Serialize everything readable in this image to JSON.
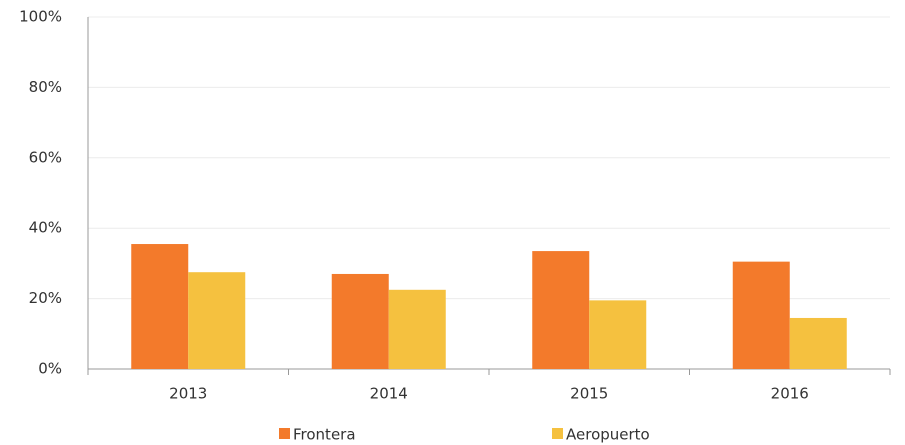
{
  "chart_data": {
    "type": "bar",
    "categories": [
      "2013",
      "2014",
      "2015",
      "2016"
    ],
    "series": [
      {
        "name": "Frontera",
        "color": "#f37a2b",
        "values": [
          35.5,
          27,
          33.5,
          30.5
        ]
      },
      {
        "name": "Aeropuerto",
        "color": "#f5c13f",
        "values": [
          27.5,
          22.5,
          19.5,
          14.5
        ]
      }
    ],
    "ylim": [
      0,
      100
    ],
    "yticks": [
      {
        "value": 0,
        "label": "0%"
      },
      {
        "value": 20,
        "label": "20%"
      },
      {
        "value": 40,
        "label": "40%"
      },
      {
        "value": 60,
        "label": "60%"
      },
      {
        "value": 80,
        "label": "80%"
      },
      {
        "value": 100,
        "label": "100%"
      }
    ],
    "grid": true,
    "legend": "bottom"
  }
}
